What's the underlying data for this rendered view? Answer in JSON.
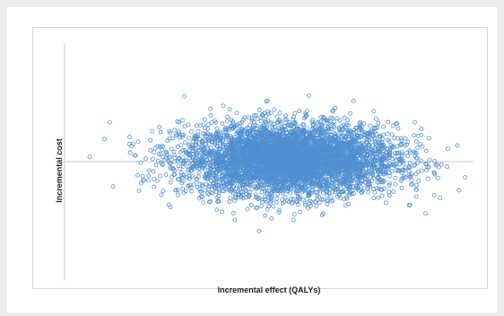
{
  "chart_data": {
    "type": "scatter",
    "xlabel": "Incremental effect (QALYs)",
    "ylabel": "Incremental cost",
    "title": "",
    "grid": false,
    "legend": "none",
    "xlim": [
      -3,
      3
    ],
    "ylim": [
      -3,
      3
    ],
    "axes_cross_at": [
      0,
      0
    ],
    "point_color": "#4f8ed0",
    "point_count": 5000,
    "distribution": {
      "center_x": 0.3,
      "center_y": 0.05,
      "sd_x": 0.78,
      "sd_y": 0.45,
      "note": "bivariate normal cloud"
    },
    "series": [
      {
        "values": []
      }
    ]
  }
}
